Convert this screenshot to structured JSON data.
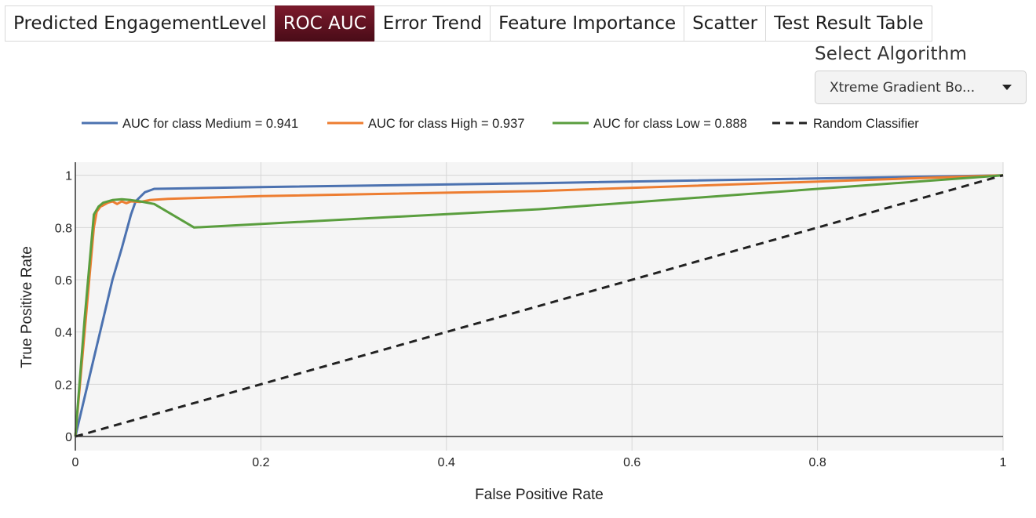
{
  "tabs": [
    {
      "label": "Predicted EngagementLevel",
      "active": false
    },
    {
      "label": "ROC AUC",
      "active": true
    },
    {
      "label": "Error Trend",
      "active": false
    },
    {
      "label": "Feature Importance",
      "active": false
    },
    {
      "label": "Scatter",
      "active": false
    },
    {
      "label": "Test Result Table",
      "active": false
    }
  ],
  "colors": {
    "active_tab_gradient_start": "#7b1a2c",
    "active_tab_gradient_end": "#4a0c18",
    "plot_background": "#f5f5f5",
    "dropdown_background": "#f3f3f3"
  },
  "algorithm": {
    "label": "Select Algorithm",
    "selected": "Xtreme Gradient Bo..."
  },
  "chart_data": {
    "type": "line",
    "title": "",
    "xlabel": "False Positive Rate",
    "ylabel": "True Positive Rate",
    "xlim": [
      0,
      1
    ],
    "ylim": [
      0,
      1.05
    ],
    "xticks": [
      "0",
      "0.2",
      "0.4",
      "0.6",
      "0.8",
      "1"
    ],
    "yticks": [
      "0",
      "0.2",
      "0.4",
      "0.6",
      "0.8",
      "1"
    ],
    "grid": true,
    "legend_position": "top",
    "series": [
      {
        "name": "AUC for class Medium = 0.941",
        "color": "#4c72b0",
        "dash": "solid",
        "x": [
          0,
          0.01,
          0.02,
          0.03,
          0.04,
          0.05,
          0.06,
          0.065,
          0.075,
          0.085,
          0.2,
          0.5,
          1
        ],
        "y": [
          0,
          0.15,
          0.3,
          0.45,
          0.6,
          0.72,
          0.85,
          0.9,
          0.935,
          0.948,
          0.955,
          0.97,
          1
        ]
      },
      {
        "name": "AUC for class High = 0.937",
        "color": "#ed7d31",
        "dash": "solid",
        "x": [
          0,
          0.01,
          0.02,
          0.023,
          0.027,
          0.03,
          0.035,
          0.04,
          0.045,
          0.05,
          0.055,
          0.06,
          0.07,
          0.08,
          0.1,
          0.2,
          0.5,
          1
        ],
        "y": [
          0,
          0.4,
          0.8,
          0.86,
          0.88,
          0.885,
          0.895,
          0.9,
          0.89,
          0.9,
          0.893,
          0.9,
          0.898,
          0.905,
          0.91,
          0.92,
          0.94,
          1
        ]
      },
      {
        "name": "AUC for class Low = 0.888",
        "color": "#5a9e3e",
        "dash": "solid",
        "x": [
          0,
          0.01,
          0.02,
          0.025,
          0.03,
          0.04,
          0.05,
          0.06,
          0.07,
          0.085,
          0.128,
          0.5,
          1
        ],
        "y": [
          0,
          0.45,
          0.85,
          0.88,
          0.895,
          0.905,
          0.908,
          0.905,
          0.9,
          0.89,
          0.8,
          0.87,
          1
        ]
      },
      {
        "name": "Random Classifier",
        "color": "#222222",
        "dash": "dashed",
        "x": [
          0,
          1
        ],
        "y": [
          0,
          1
        ]
      }
    ]
  }
}
